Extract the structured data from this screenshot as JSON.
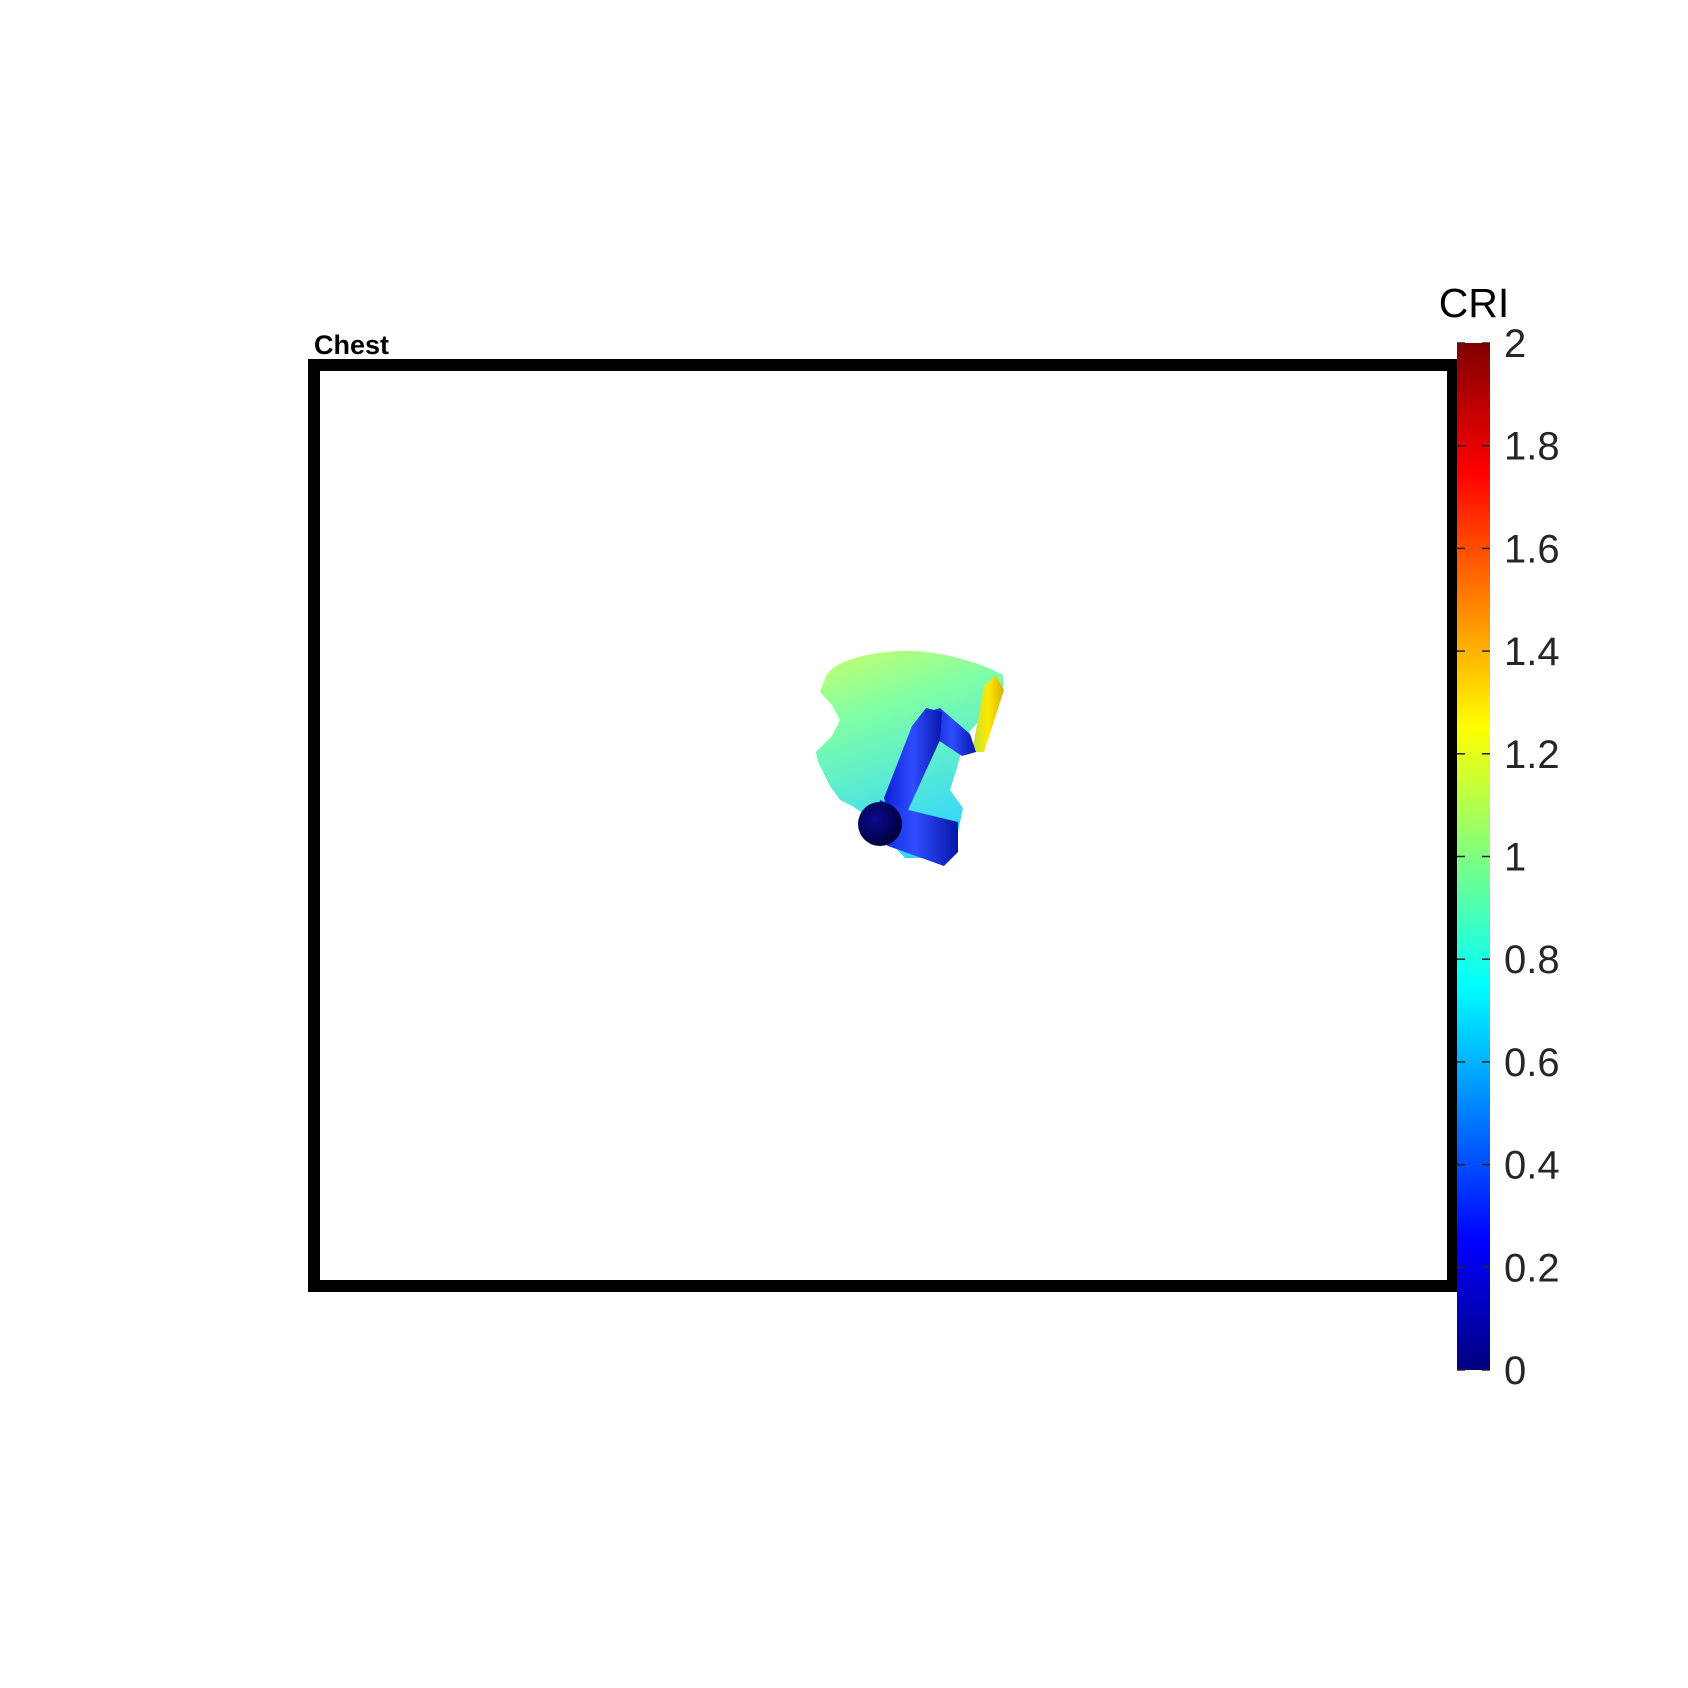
{
  "chart_data": {
    "type": "heatmap",
    "title": "Chest",
    "xlabel": "",
    "ylabel": "",
    "grid": false,
    "colorbar": {
      "label": "CRI",
      "colormap": "jet",
      "range": [
        0,
        2
      ],
      "ticks": [
        0,
        0.2,
        0.4,
        0.6,
        0.8,
        1,
        1.2,
        1.4,
        1.6,
        1.8,
        2
      ],
      "tick_labels": [
        "0",
        "0.2",
        "0.4",
        "0.6",
        "0.8",
        "1",
        "1.2",
        "1.4",
        "1.6",
        "1.8",
        "2"
      ],
      "placement": "right"
    },
    "rendered_objects": [
      {
        "name": "reach-surface",
        "cri_range": [
          0.7,
          1.2
        ],
        "dominant_cri": 0.85
      },
      {
        "name": "upper-arm",
        "cri": 0.3
      },
      {
        "name": "forearm",
        "cri": 0.3
      },
      {
        "name": "hand-segment",
        "cri": 1.25
      },
      {
        "name": "shoulder-joint",
        "cri": 0.1
      }
    ]
  },
  "colors": {
    "frame": "#000000",
    "background": "#ffffff",
    "jet_stops": [
      "#00007f",
      "#0000ff",
      "#007fff",
      "#00ffff",
      "#7fff7f",
      "#ffff00",
      "#ff7f00",
      "#ff0000",
      "#7f0000"
    ]
  }
}
